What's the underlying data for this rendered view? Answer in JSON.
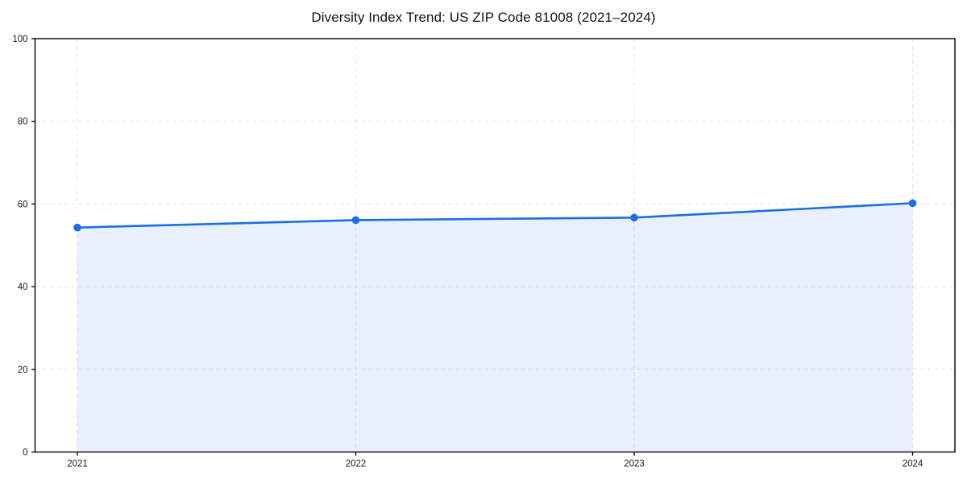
{
  "chart_data": {
    "type": "area",
    "title": "Diversity Index Trend: US ZIP Code 81008 (2021–2024)",
    "categories": [
      "2021",
      "2022",
      "2023",
      "2024"
    ],
    "x": [
      2021,
      2022,
      2023,
      2024
    ],
    "series": [
      {
        "name": "Diversity Index",
        "values": [
          54.3,
          56.1,
          56.7,
          60.2
        ]
      }
    ],
    "xlabel": "",
    "ylabel": "",
    "ylim": [
      0,
      100
    ],
    "yticks": [
      0,
      20,
      40,
      60,
      80,
      100
    ],
    "grid": true,
    "grid_style": "dashed",
    "legend": false,
    "colors": {
      "line": "#1b6ee3",
      "marker": "#1b6ee3",
      "fill": "rgba(27,110,227,0.10)",
      "grid": "#e4e4e4",
      "axis": "#000000",
      "tick_text": "#1a1a1a",
      "background": "#ffffff"
    }
  }
}
